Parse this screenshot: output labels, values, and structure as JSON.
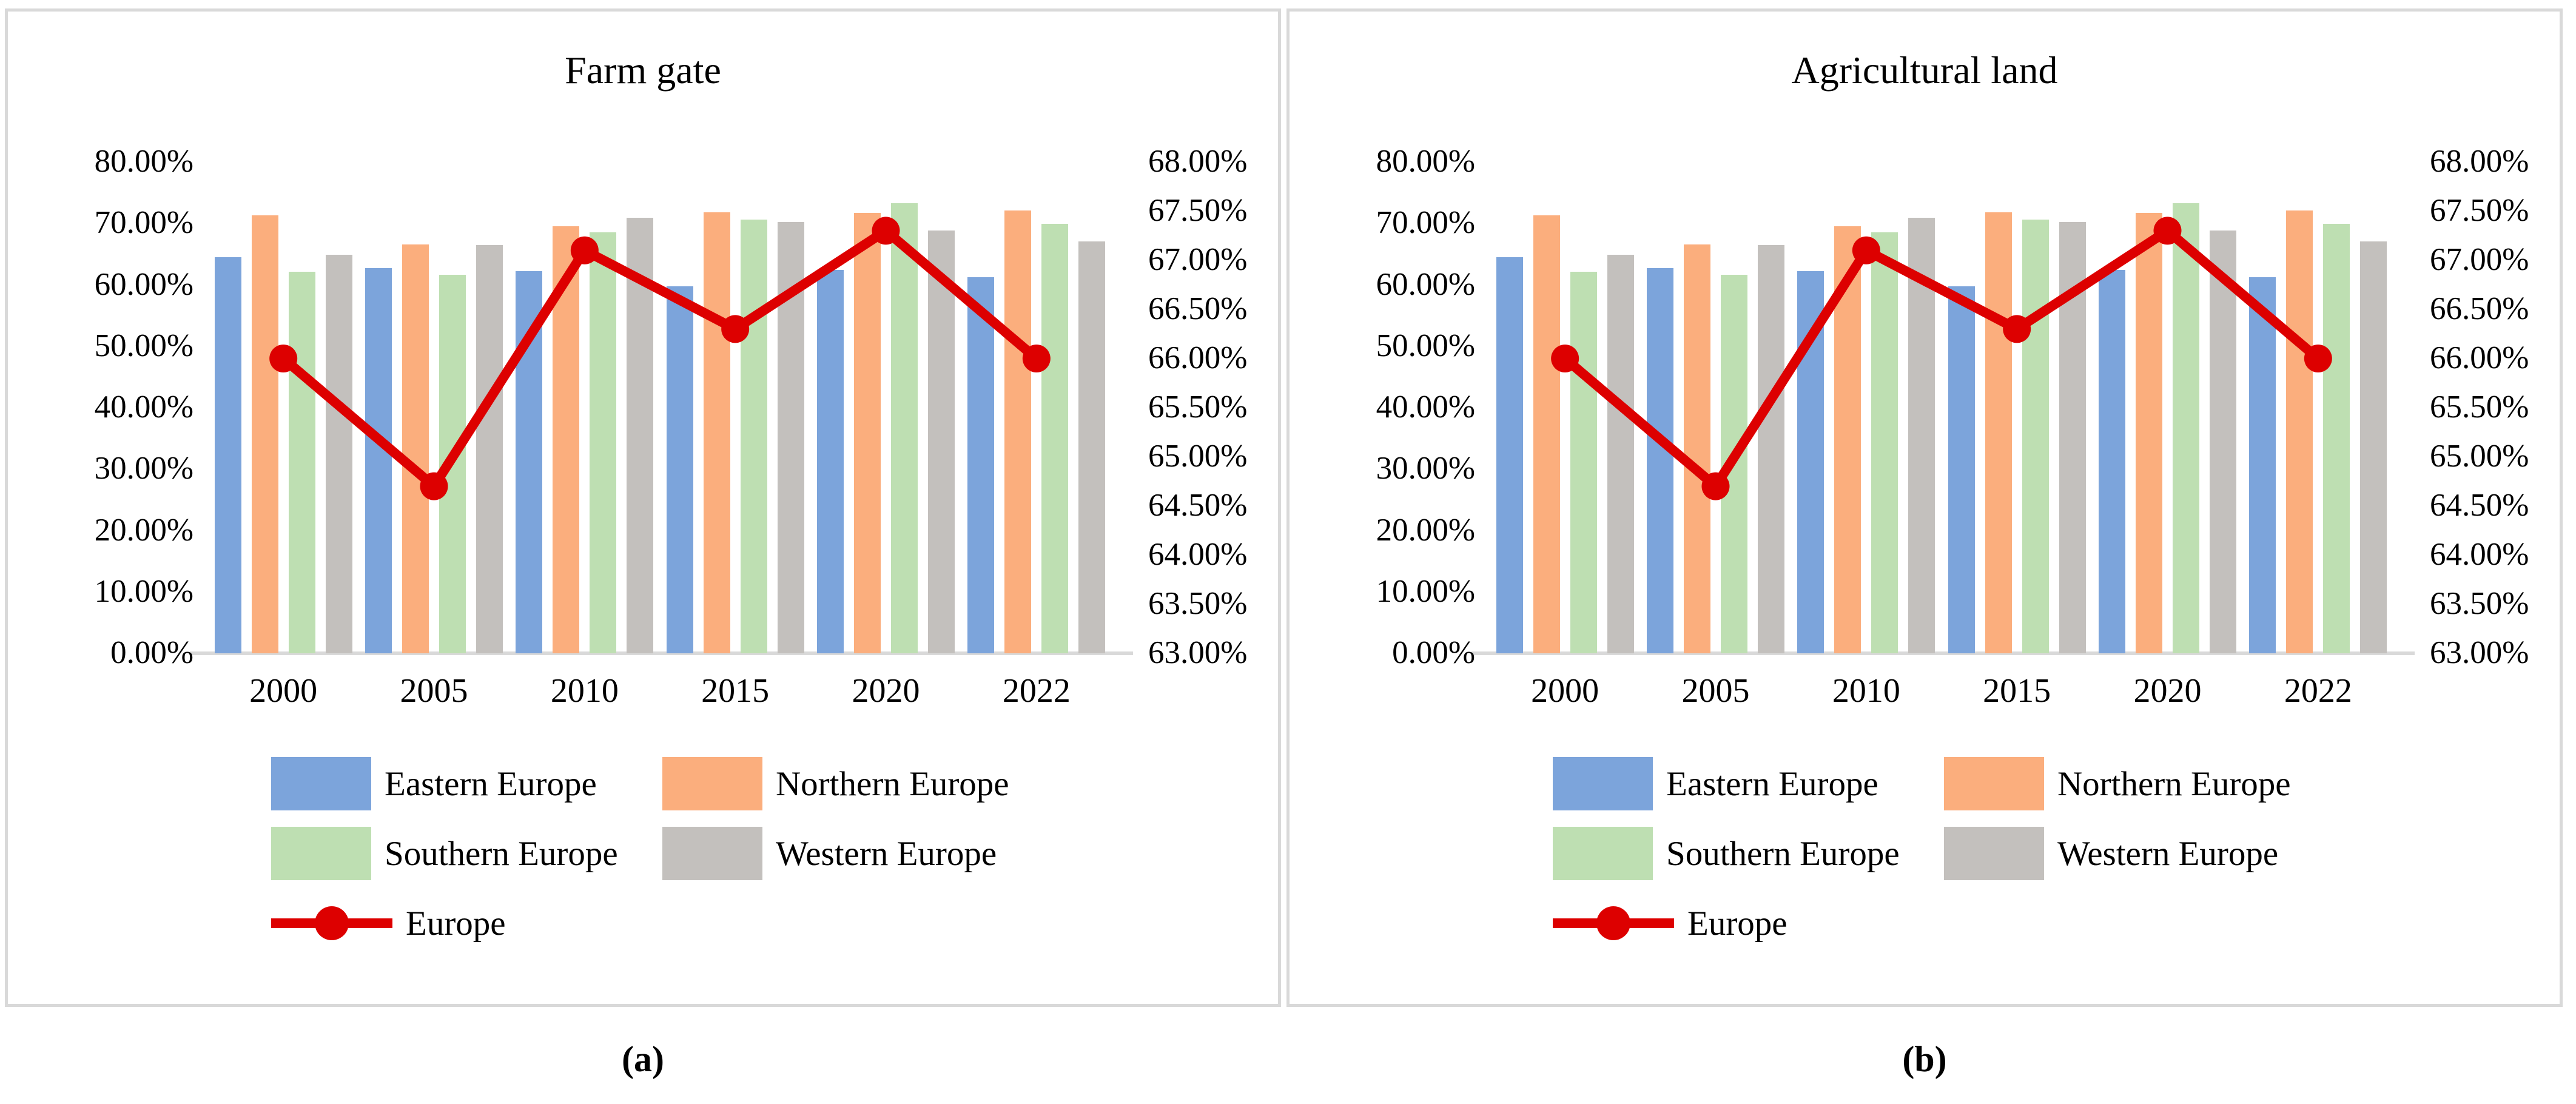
{
  "figure": {
    "panels": [
      {
        "title": "Farm gate",
        "caption": "(a)"
      },
      {
        "title": "Agricultural land",
        "caption": "(b)"
      }
    ]
  },
  "colors": {
    "eastern_blue": "#7CA4DB",
    "northern_orange": "#FBAE7D",
    "southern_green": "#BEDFB2",
    "western_gray": "#C3C0BD",
    "europe_red": "#DD0000",
    "axis_line": "#D9D9D9",
    "panel_border": "#D9D9D9",
    "text": "#000000"
  },
  "chart_data": [
    {
      "type": "bar",
      "subtype": "grouped-bars-with-line-overlay",
      "title": "Farm gate",
      "categories": [
        "2000",
        "2005",
        "2010",
        "2015",
        "2020",
        "2022"
      ],
      "series": [
        {
          "name": "Eastern Europe",
          "type": "bar",
          "axis": "left",
          "color": "#7CA4DB",
          "values": [
            64.5,
            62.7,
            62.2,
            59.8,
            62.4,
            61.2
          ]
        },
        {
          "name": "Northern Europe",
          "type": "bar",
          "axis": "left",
          "color": "#FBAE7D",
          "values": [
            71.3,
            66.6,
            69.5,
            71.8,
            71.7,
            72.1
          ]
        },
        {
          "name": "Southern Europe",
          "type": "bar",
          "axis": "left",
          "color": "#BEDFB2",
          "values": [
            62.1,
            61.6,
            68.5,
            70.6,
            73.3,
            69.9
          ]
        },
        {
          "name": "Western Europe",
          "type": "bar",
          "axis": "left",
          "color": "#C3C0BD",
          "values": [
            64.9,
            66.5,
            70.9,
            70.2,
            68.8,
            67.1
          ]
        },
        {
          "name": "Europe",
          "type": "line",
          "axis": "right",
          "color": "#DD0000",
          "values": [
            66.0,
            64.7,
            67.1,
            66.3,
            67.3,
            66.0
          ]
        }
      ],
      "left_axis": {
        "min": 0,
        "max": 80,
        "step": 10,
        "tick_labels": [
          "80.00%",
          "70.00%",
          "60.00%",
          "50.00%",
          "40.00%",
          "30.00%",
          "20.00%",
          "10.00%",
          "0.00%"
        ]
      },
      "right_axis": {
        "min": 63,
        "max": 68,
        "step": 0.5,
        "tick_labels": [
          "68.00%",
          "67.50%",
          "67.00%",
          "66.50%",
          "66.00%",
          "65.50%",
          "65.00%",
          "64.50%",
          "64.00%",
          "63.50%",
          "63.00%"
        ]
      },
      "grid": false,
      "legend_position": "bottom-left"
    },
    {
      "type": "bar",
      "subtype": "grouped-bars-with-line-overlay",
      "title": "Agricultural land",
      "categories": [
        "2000",
        "2005",
        "2010",
        "2015",
        "2020",
        "2022"
      ],
      "series": [
        {
          "name": "Eastern Europe",
          "type": "bar",
          "axis": "left",
          "color": "#7CA4DB",
          "values": [
            64.5,
            62.7,
            62.2,
            59.8,
            62.4,
            61.2
          ]
        },
        {
          "name": "Northern Europe",
          "type": "bar",
          "axis": "left",
          "color": "#FBAE7D",
          "values": [
            71.3,
            66.6,
            69.5,
            71.8,
            71.7,
            72.1
          ]
        },
        {
          "name": "Southern Europe",
          "type": "bar",
          "axis": "left",
          "color": "#BEDFB2",
          "values": [
            62.1,
            61.6,
            68.5,
            70.6,
            73.3,
            69.9
          ]
        },
        {
          "name": "Western Europe",
          "type": "bar",
          "axis": "left",
          "color": "#C3C0BD",
          "values": [
            64.9,
            66.5,
            70.9,
            70.2,
            68.8,
            67.1
          ]
        },
        {
          "name": "Europe",
          "type": "line",
          "axis": "right",
          "color": "#DD0000",
          "values": [
            66.0,
            64.7,
            67.1,
            66.3,
            67.3,
            66.0
          ]
        }
      ],
      "left_axis": {
        "min": 0,
        "max": 80,
        "step": 10,
        "tick_labels": [
          "80.00%",
          "70.00%",
          "60.00%",
          "50.00%",
          "40.00%",
          "30.00%",
          "20.00%",
          "10.00%",
          "0.00%"
        ]
      },
      "right_axis": {
        "min": 63,
        "max": 68,
        "step": 0.5,
        "tick_labels": [
          "68.00%",
          "67.50%",
          "67.00%",
          "66.50%",
          "66.00%",
          "65.50%",
          "65.00%",
          "64.50%",
          "64.00%",
          "63.50%",
          "63.00%"
        ]
      },
      "grid": false,
      "legend_position": "bottom-left"
    }
  ]
}
